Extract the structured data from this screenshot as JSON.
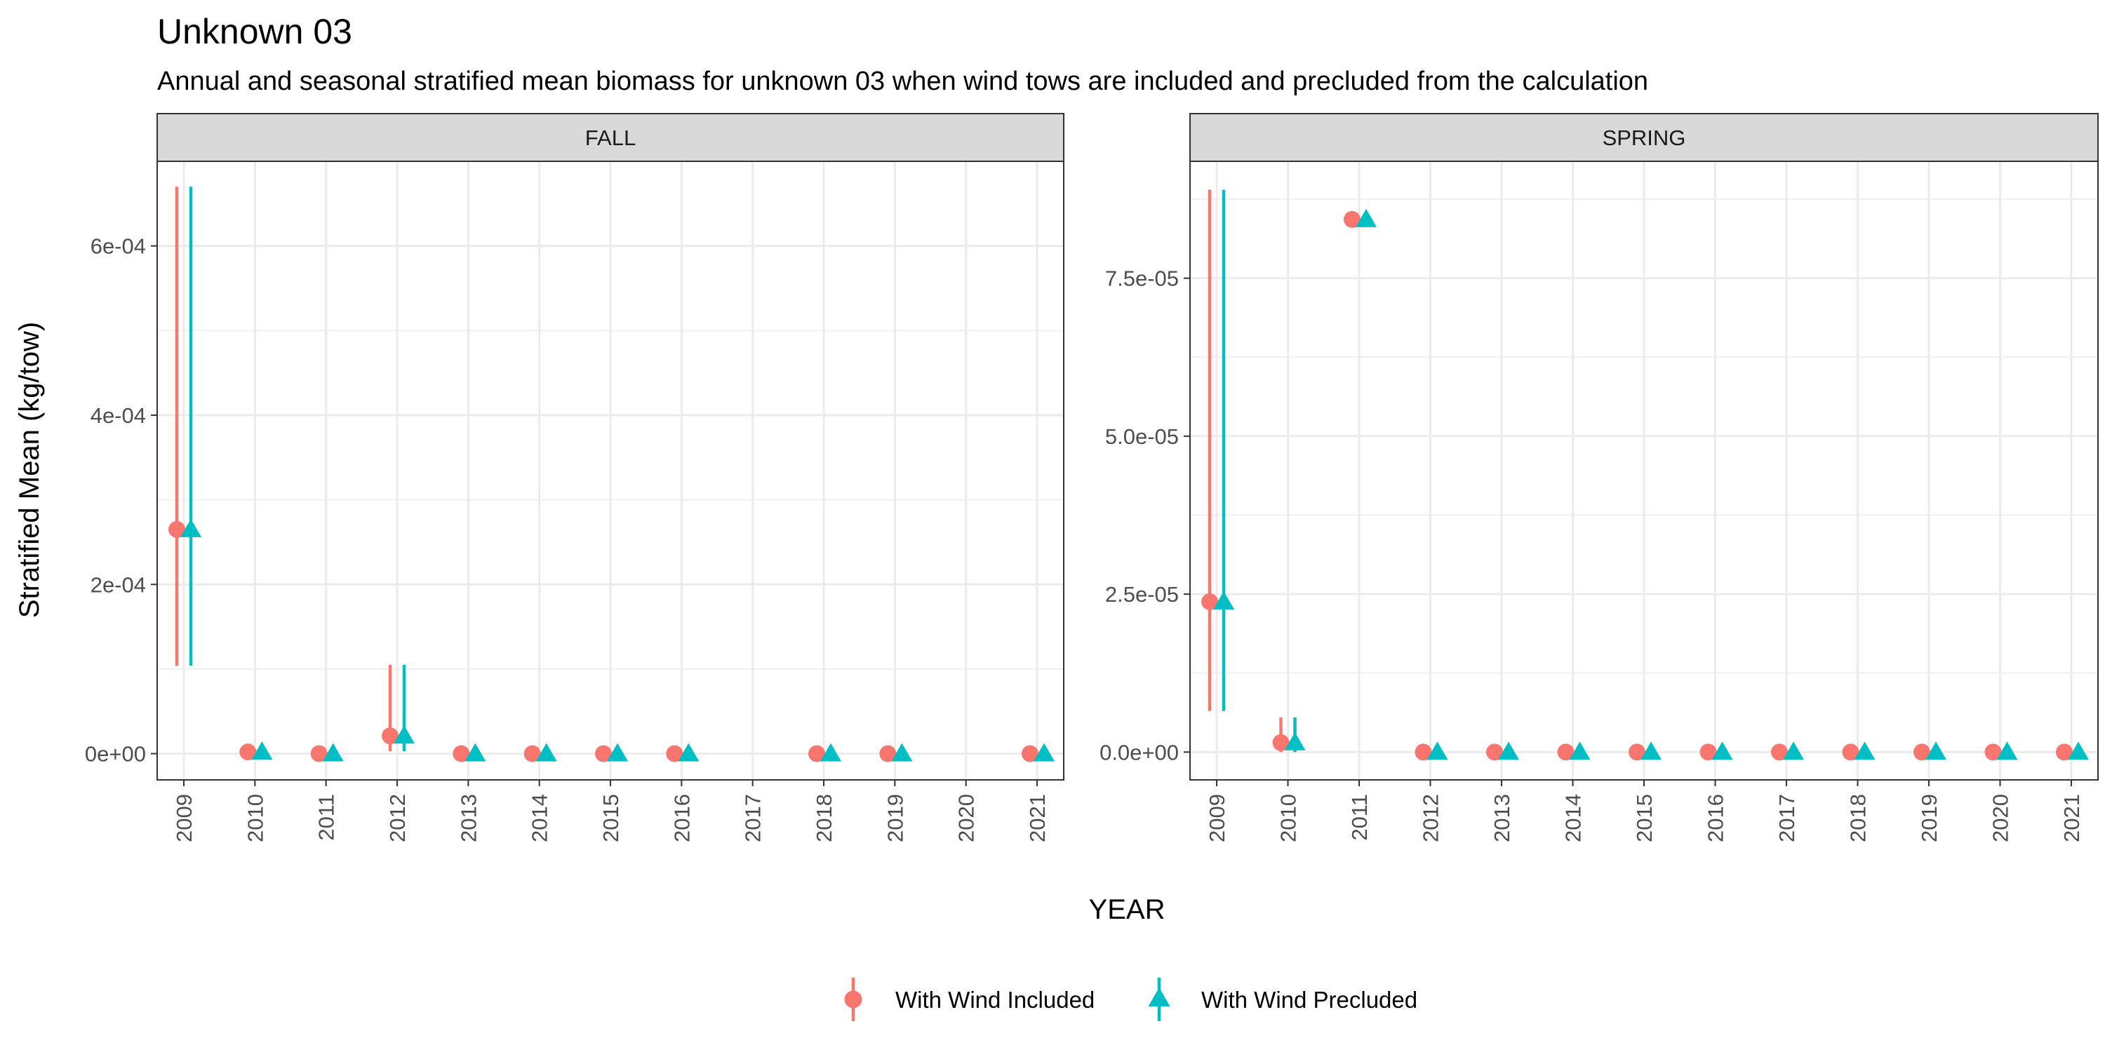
{
  "chart_data": {
    "type": "scatter",
    "title": "Unknown 03",
    "subtitle": "Annual and seasonal stratified mean biomass for unknown 03 when wind tows are included and precluded from the calculation",
    "xlabel": "YEAR",
    "ylabel": "Stratified Mean (kg/tow)",
    "legend_position": "bottom",
    "grid": true,
    "colors": {
      "With Wind Included": "#F8766D",
      "With Wind Precluded": "#00BFC4"
    },
    "series_names": [
      "With Wind Included",
      "With Wind Precluded"
    ],
    "panels": [
      {
        "name": "FALL",
        "x": [
          "2009",
          "2010",
          "2011",
          "2012",
          "2013",
          "2014",
          "2015",
          "2016",
          "2017",
          "2018",
          "2019",
          "2020",
          "2021"
        ],
        "ylim": [
          -3.1e-05,
          0.0007
        ],
        "yticks": [
          0,
          0.0002,
          0.0004,
          0.0006
        ],
        "ytick_labels": [
          "0e+00",
          "2e-04",
          "4e-04",
          "6e-04"
        ],
        "series": [
          {
            "name": "With Wind Included",
            "points": [
              {
                "x": "2009",
                "y": 0.000265,
                "low": 0.000104,
                "high": 0.00067
              },
              {
                "x": "2010",
                "y": 2e-06
              },
              {
                "x": "2011",
                "y": 0.0
              },
              {
                "x": "2012",
                "y": 2.1e-05,
                "low": 3e-06,
                "high": 0.000105
              },
              {
                "x": "2013",
                "y": 0.0
              },
              {
                "x": "2014",
                "y": 0.0
              },
              {
                "x": "2015",
                "y": 0.0
              },
              {
                "x": "2016",
                "y": 0.0
              },
              {
                "x": "2018",
                "y": 0.0
              },
              {
                "x": "2019",
                "y": 0.0
              },
              {
                "x": "2021",
                "y": 0.0
              }
            ]
          },
          {
            "name": "With Wind Precluded",
            "points": [
              {
                "x": "2009",
                "y": 0.000265,
                "low": 0.000104,
                "high": 0.00067
              },
              {
                "x": "2010",
                "y": 2e-06
              },
              {
                "x": "2011",
                "y": 0.0
              },
              {
                "x": "2012",
                "y": 2.1e-05,
                "low": 3e-06,
                "high": 0.000105
              },
              {
                "x": "2013",
                "y": 0.0
              },
              {
                "x": "2014",
                "y": 0.0
              },
              {
                "x": "2015",
                "y": 0.0
              },
              {
                "x": "2016",
                "y": 0.0
              },
              {
                "x": "2018",
                "y": 0.0
              },
              {
                "x": "2019",
                "y": 0.0
              },
              {
                "x": "2021",
                "y": 0.0
              }
            ]
          }
        ]
      },
      {
        "name": "SPRING",
        "x": [
          "2009",
          "2010",
          "2011",
          "2012",
          "2013",
          "2014",
          "2015",
          "2016",
          "2017",
          "2018",
          "2019",
          "2020",
          "2021"
        ],
        "ylim": [
          -4.4e-06,
          9.35e-05
        ],
        "yticks": [
          0,
          2.5e-05,
          5e-05,
          7.5e-05
        ],
        "ytick_labels": [
          "0.0e+00",
          "2.5e-05",
          "5.0e-05",
          "7.5e-05"
        ],
        "series": [
          {
            "name": "With Wind Included",
            "points": [
              {
                "x": "2009",
                "y": 2.38e-05,
                "low": 6.5e-06,
                "high": 8.9e-05
              },
              {
                "x": "2010",
                "y": 1.5e-06,
                "low": 0.0,
                "high": 5.5e-06
              },
              {
                "x": "2011",
                "y": 8.43e-05
              },
              {
                "x": "2012",
                "y": 0.0
              },
              {
                "x": "2013",
                "y": 0.0
              },
              {
                "x": "2014",
                "y": 0.0
              },
              {
                "x": "2015",
                "y": 0.0
              },
              {
                "x": "2016",
                "y": 0.0
              },
              {
                "x": "2017",
                "y": 0.0
              },
              {
                "x": "2018",
                "y": 0.0
              },
              {
                "x": "2019",
                "y": 0.0
              },
              {
                "x": "2020",
                "y": 0.0
              },
              {
                "x": "2021",
                "y": 0.0
              }
            ]
          },
          {
            "name": "With Wind Precluded",
            "points": [
              {
                "x": "2009",
                "y": 2.38e-05,
                "low": 6.5e-06,
                "high": 8.9e-05
              },
              {
                "x": "2010",
                "y": 1.5e-06,
                "low": 0.0,
                "high": 5.5e-06
              },
              {
                "x": "2011",
                "y": 8.43e-05
              },
              {
                "x": "2012",
                "y": 0.0
              },
              {
                "x": "2013",
                "y": 0.0
              },
              {
                "x": "2014",
                "y": 0.0
              },
              {
                "x": "2015",
                "y": 0.0
              },
              {
                "x": "2016",
                "y": 0.0
              },
              {
                "x": "2017",
                "y": 0.0
              },
              {
                "x": "2018",
                "y": 0.0
              },
              {
                "x": "2019",
                "y": 0.0
              },
              {
                "x": "2020",
                "y": 0.0
              },
              {
                "x": "2021",
                "y": 0.0
              }
            ]
          }
        ]
      }
    ]
  }
}
